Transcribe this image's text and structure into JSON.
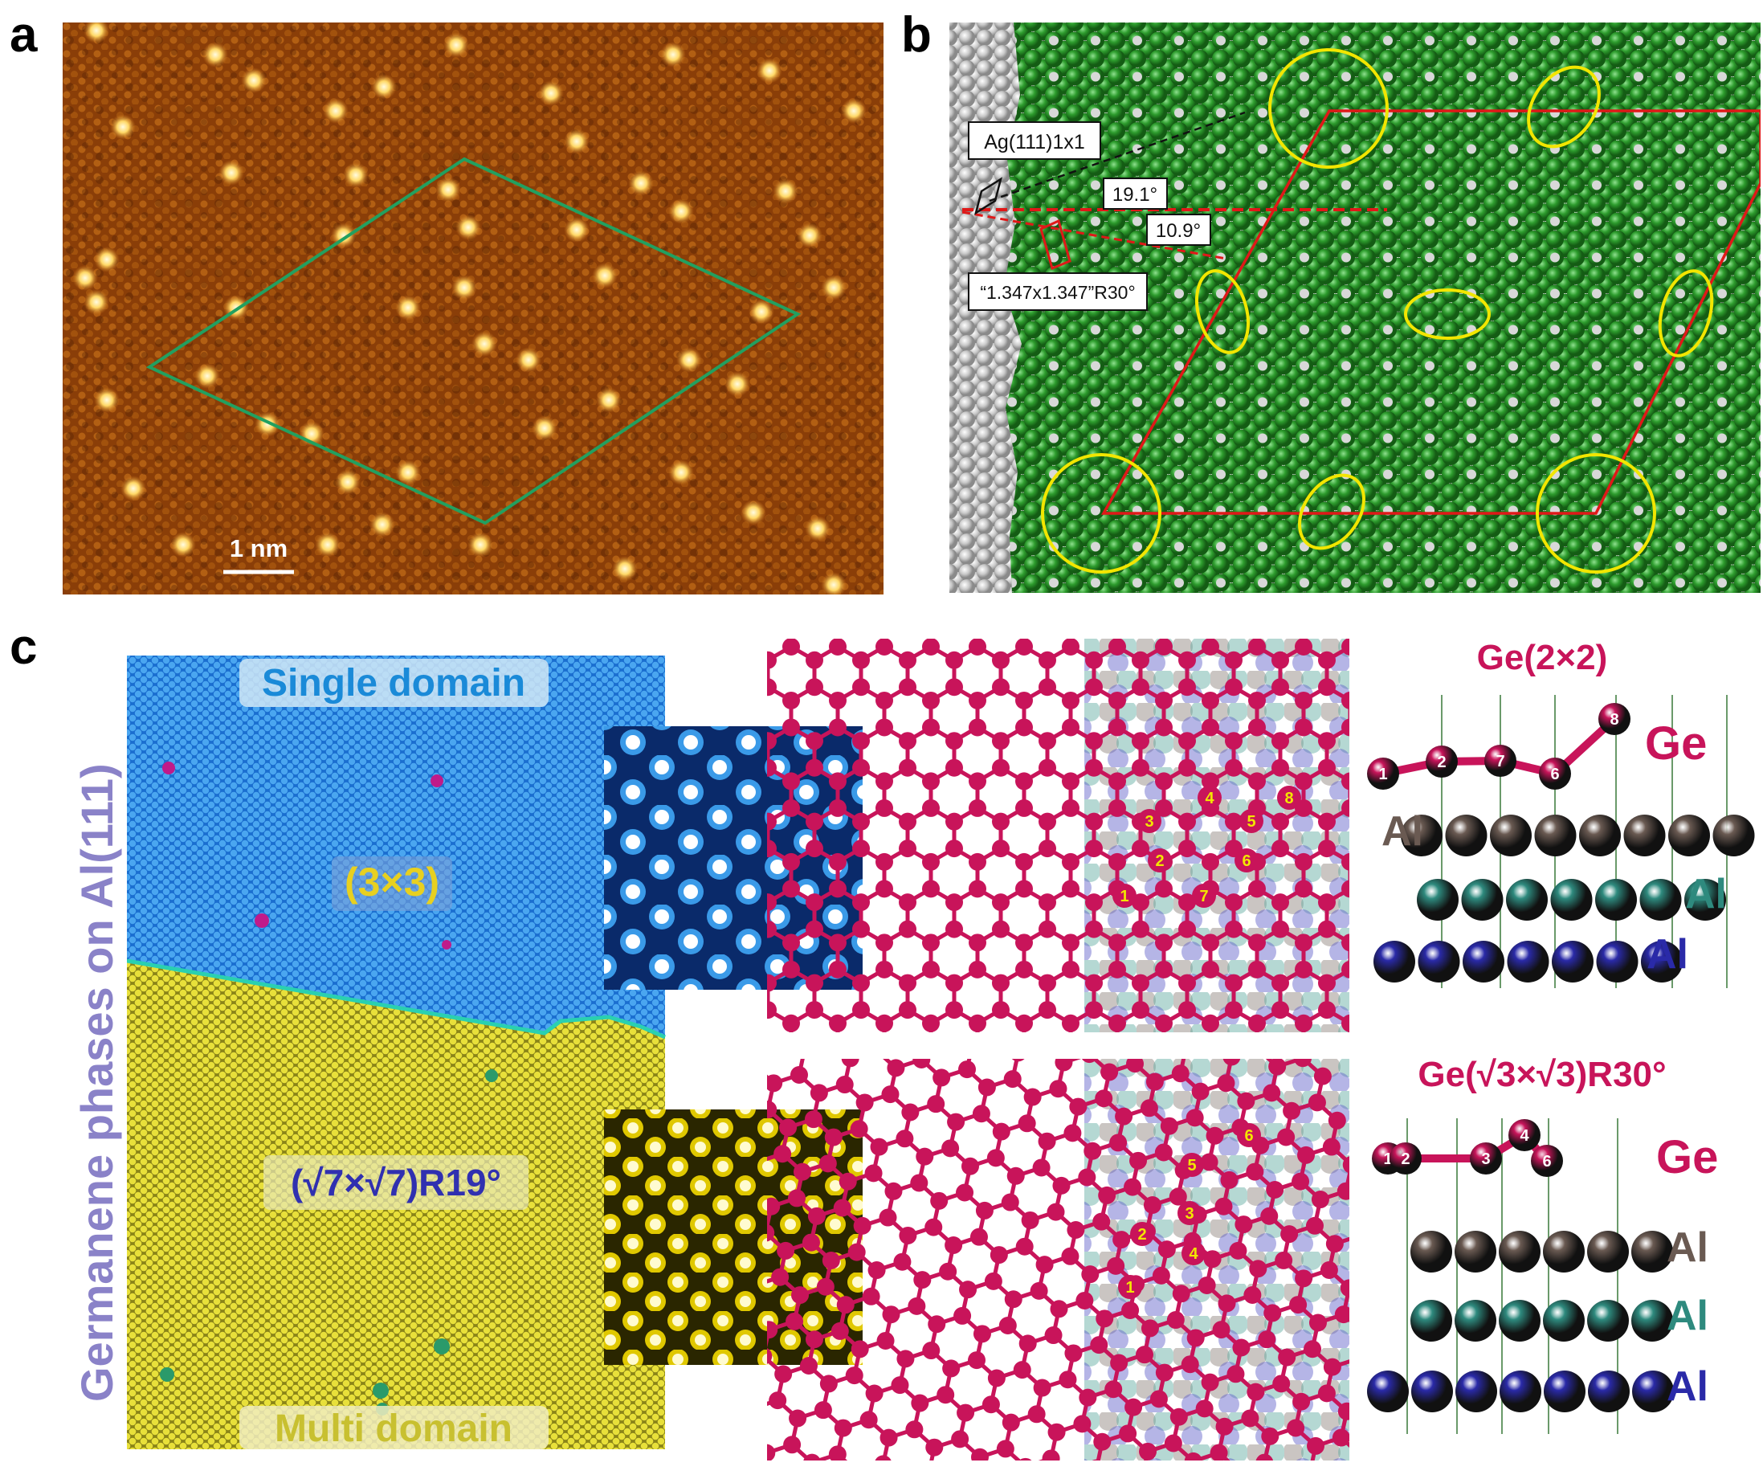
{
  "figure": {
    "panel_a": {
      "letter": "a",
      "scale_bar": "1 nm",
      "colors": {
        "background": "#8a3e08",
        "cell_outline": "#22a060",
        "spot": "#fff3b0"
      }
    },
    "panel_b": {
      "letter": "b",
      "labels": {
        "substrate_cell": "Ag(111)1x1",
        "angle_1": "19.1°",
        "angle_2": "10.9°",
        "overlayer_cell": "“1.347x1.347”R30°"
      },
      "colors": {
        "ge_atom": "#2e9d2e",
        "ag_atom": "#c8c8c8",
        "supercell": "#e01818",
        "ring": "#f2e600"
      }
    },
    "panel_c": {
      "letter": "c",
      "side_title": "Germanene phases on Al(111)",
      "stm": {
        "top_label": "Single domain",
        "phase_1": "(3×3)",
        "phase_2": "(√7×√7)R19°",
        "bottom_label": "Multi domain"
      },
      "model_top": {
        "title": "Ge(2×2)",
        "atom_numbers": [
          "1",
          "2",
          "3",
          "4",
          "5",
          "6",
          "7",
          "8"
        ],
        "side_atoms": [
          "1",
          "2",
          "7",
          "6",
          "8"
        ],
        "layer_labels": [
          "Ge",
          "Al",
          "Al",
          "Al"
        ]
      },
      "model_bottom": {
        "title": "Ge(√3×√3)R30°",
        "atom_numbers": [
          "1",
          "2",
          "3",
          "4",
          "5",
          "6"
        ],
        "side_atoms": [
          "1",
          "2",
          "3",
          "4",
          "6"
        ],
        "layer_labels": [
          "Ge",
          "Al",
          "Al",
          "Al"
        ]
      },
      "colors": {
        "ge": "#c8145a",
        "al_top": "#6a5a52",
        "al_mid": "#2e8a7e",
        "al_bottom": "#2a2aa8",
        "single_domain": "#1a6ed0",
        "multi_domain": "#d8d020",
        "phase_2_text": "#3030b0",
        "side_title": "#8a82c8"
      }
    }
  }
}
